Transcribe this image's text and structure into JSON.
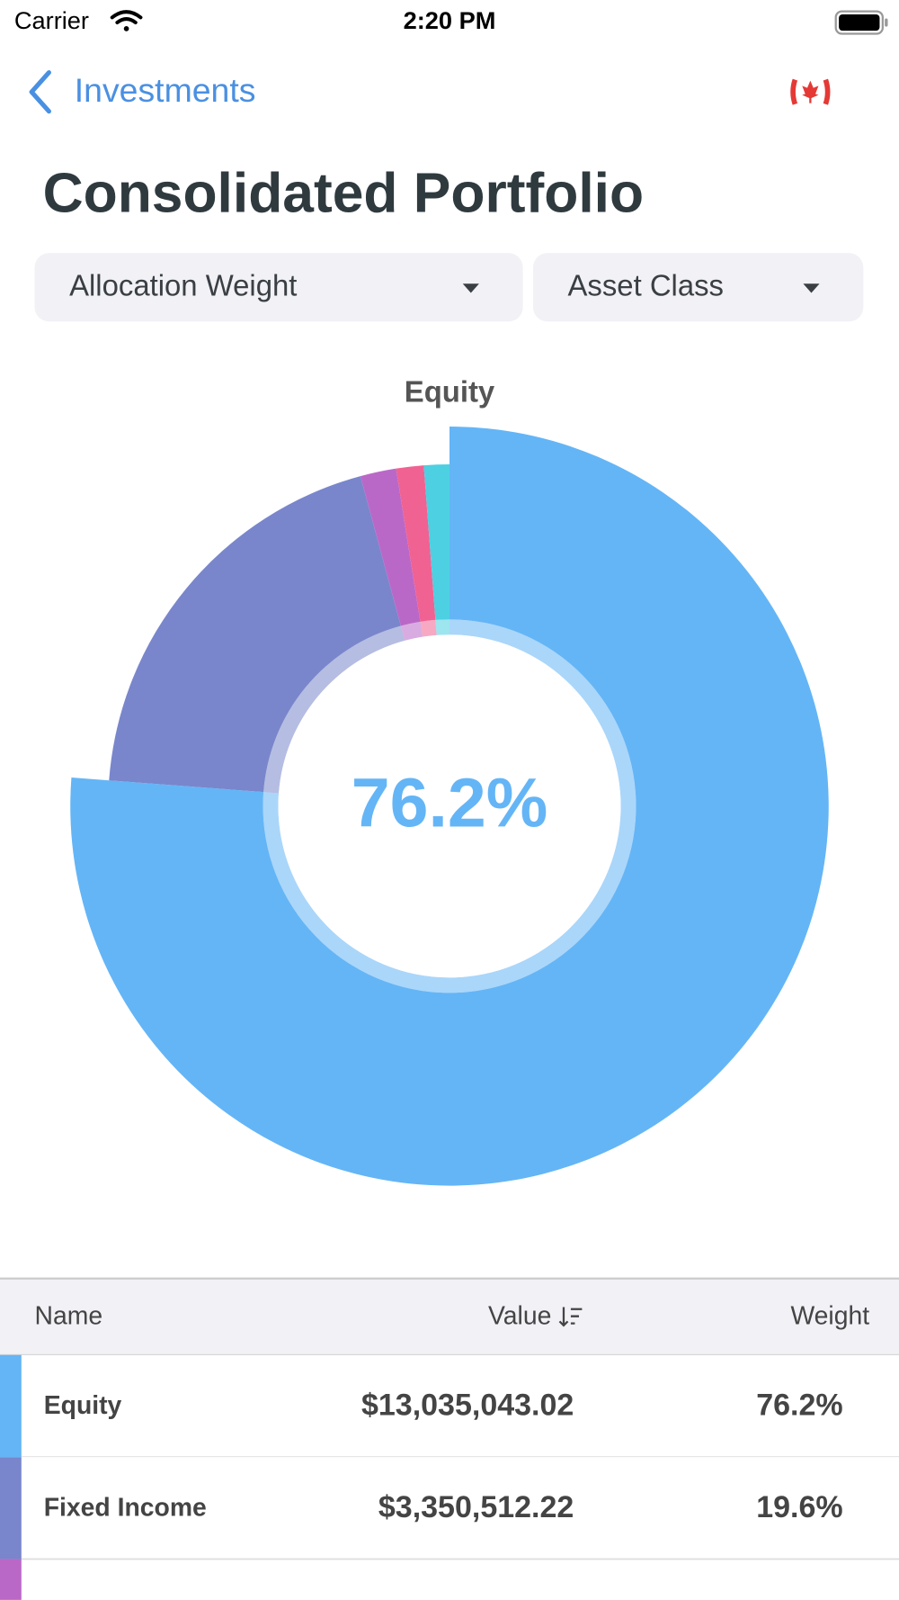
{
  "status_bar": {
    "carrier": "Carrier",
    "time": "2:20 PM"
  },
  "nav": {
    "back": "Investments"
  },
  "header": {
    "title": "Consolidated Portfolio"
  },
  "filters": [
    "Allocation Weight",
    "Asset Class"
  ],
  "chart_data": {
    "type": "pie",
    "title": "Equity",
    "center_label": "76.2%",
    "categories": [
      "Equity",
      "Fixed Income",
      null,
      null,
      null
    ],
    "values": [
      76.2,
      19.6,
      1.7,
      1.3,
      1.2
    ],
    "colors": [
      "#64b5f6",
      "#7986cb",
      "#ba68c8",
      "#f06292",
      "#4dd0e1"
    ]
  },
  "table": {
    "columns": [
      "Name",
      "Value",
      "Weight"
    ],
    "rows": [
      [
        "Equity",
        "$13,035,043.02",
        "76.2%"
      ],
      [
        "Fixed Income",
        "$3,350,512.22",
        "19.6%"
      ]
    ]
  }
}
